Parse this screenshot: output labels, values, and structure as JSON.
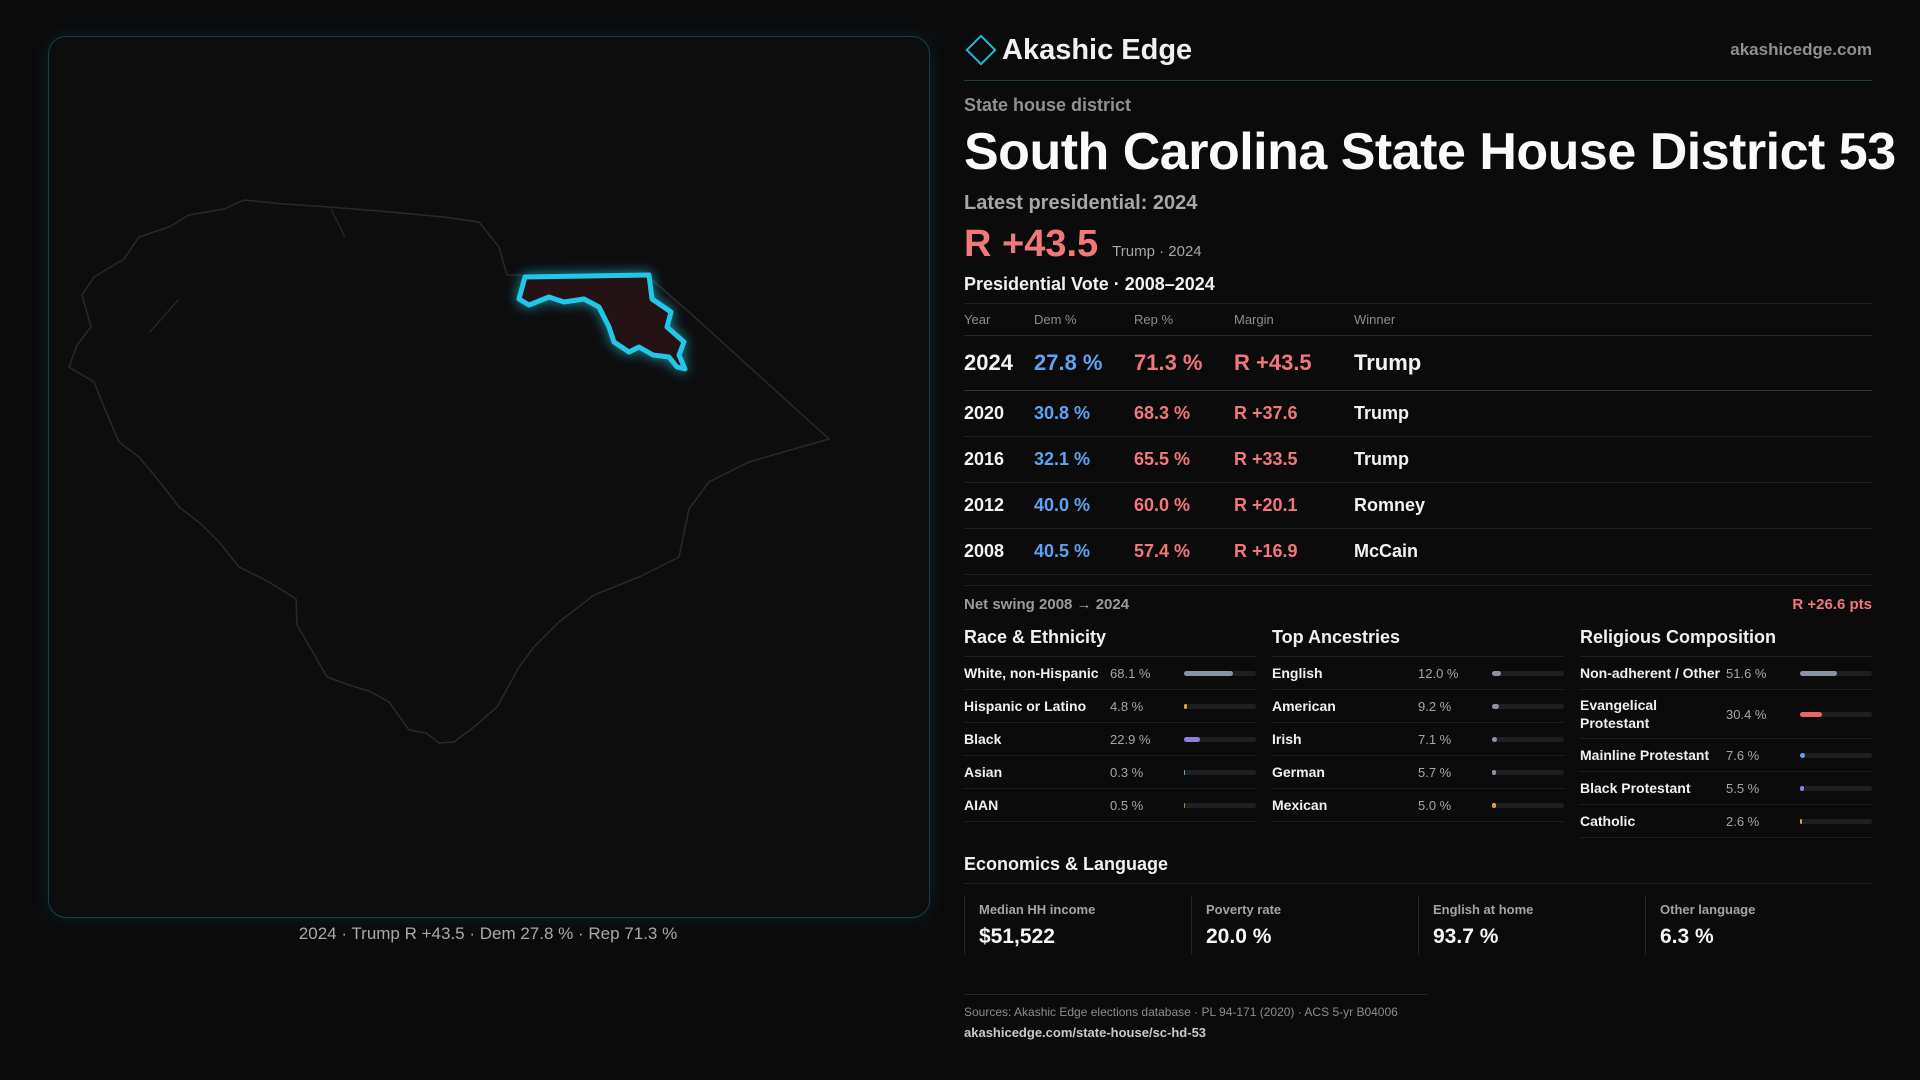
{
  "brand": {
    "name": "Akashic Edge",
    "url": "akashicedge.com"
  },
  "kicker": "State house district",
  "title": "South Carolina State House District 53",
  "latest_label": "Latest presidential: 2024",
  "headline_margin": "R +43.5",
  "headline_sub": "Trump · 2024",
  "vote_title": "Presidential Vote · 2008–2024",
  "vote_headers": {
    "year": "Year",
    "dem": "Dem %",
    "rep": "Rep %",
    "margin": "Margin",
    "winner": "Winner"
  },
  "votes": [
    {
      "year": "2024",
      "dem": "27.8 %",
      "rep": "71.3 %",
      "margin": "R +43.5",
      "winner": "Trump"
    },
    {
      "year": "2020",
      "dem": "30.8 %",
      "rep": "68.3 %",
      "margin": "R +37.6",
      "winner": "Trump"
    },
    {
      "year": "2016",
      "dem": "32.1 %",
      "rep": "65.5 %",
      "margin": "R +33.5",
      "winner": "Trump"
    },
    {
      "year": "2012",
      "dem": "40.0 %",
      "rep": "60.0 %",
      "margin": "R +20.1",
      "winner": "Romney"
    },
    {
      "year": "2008",
      "dem": "40.5 %",
      "rep": "57.4 %",
      "margin": "R +16.9",
      "winner": "McCain"
    }
  ],
  "swing": {
    "label": "Net swing 2008 → 2024",
    "value": "R +26.6 pts"
  },
  "race": {
    "title": "Race & Ethnicity",
    "rows": [
      {
        "label": "White, non-Hispanic",
        "value": "68.1 %",
        "pct": 68.1,
        "color": "#8a93a3"
      },
      {
        "label": "Hispanic or Latino",
        "value": "4.8 %",
        "pct": 4.8,
        "color": "#e0a33a"
      },
      {
        "label": "Black",
        "value": "22.9 %",
        "pct": 22.9,
        "color": "#8b7fe0"
      },
      {
        "label": "Asian",
        "value": "0.3 %",
        "pct": 0.3,
        "color": "#4fb3c8"
      },
      {
        "label": "AIAN",
        "value": "0.5 %",
        "pct": 0.5,
        "color": "#c07a4a"
      }
    ]
  },
  "ancestry": {
    "title": "Top Ancestries",
    "rows": [
      {
        "label": "English",
        "value": "12.0 %",
        "pct": 12.0,
        "color": "#8a93a3"
      },
      {
        "label": "American",
        "value": "9.2 %",
        "pct": 9.2,
        "color": "#8a93a3"
      },
      {
        "label": "Irish",
        "value": "7.1 %",
        "pct": 7.1,
        "color": "#8a93a3"
      },
      {
        "label": "German",
        "value": "5.7 %",
        "pct": 5.7,
        "color": "#8a93a3"
      },
      {
        "label": "Mexican",
        "value": "5.0 %",
        "pct": 5.0,
        "color": "#e0a33a"
      }
    ]
  },
  "religion": {
    "title": "Religious Composition",
    "rows": [
      {
        "label": "Non-adherent / Other",
        "value": "51.6 %",
        "pct": 51.6,
        "color": "#8a93a3"
      },
      {
        "label": "Evangelical Protestant",
        "value": "30.4 %",
        "pct": 30.4,
        "color": "#e5676b"
      },
      {
        "label": "Mainline Protestant",
        "value": "7.6 %",
        "pct": 7.6,
        "color": "#5fa2f2"
      },
      {
        "label": "Black Protestant",
        "value": "5.5 %",
        "pct": 5.5,
        "color": "#8b7fe0"
      },
      {
        "label": "Catholic",
        "value": "2.6 %",
        "pct": 2.6,
        "color": "#e0a33a"
      }
    ]
  },
  "economics": {
    "title": "Economics & Language",
    "cells": [
      {
        "label": "Median HH income",
        "value": "$51,522"
      },
      {
        "label": "Poverty rate",
        "value": "20.0 %"
      },
      {
        "label": "English at home",
        "value": "93.7 %"
      },
      {
        "label": "Other language",
        "value": "6.3 %"
      }
    ]
  },
  "map_caption": "2024 · Trump R +43.5 · Dem 27.8 % · Rep 71.3 %",
  "sources": "Sources: Akashic Edge elections database · PL 94-171 (2020) · ACS 5-yr B04006",
  "page_url": "akashicedge.com/state-house/sc-hd-53",
  "colors": {
    "accent": "#22c7e8",
    "dem": "#5fa2f2",
    "rep": "#f2777b"
  }
}
